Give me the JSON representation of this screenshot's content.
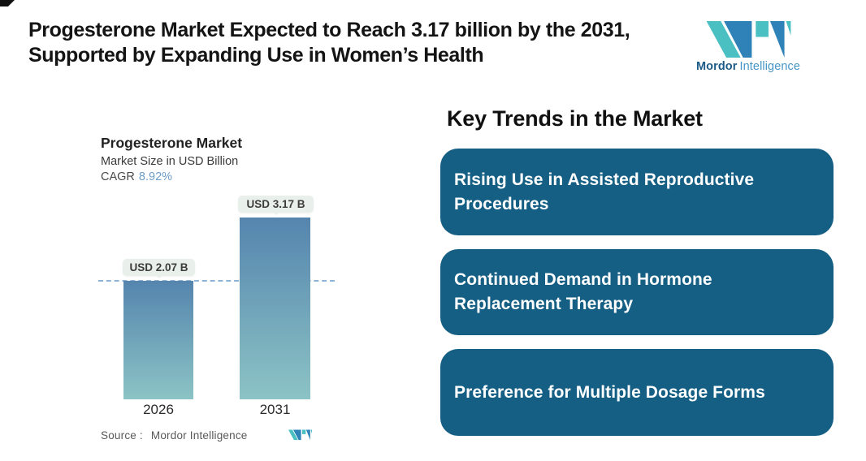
{
  "header": {
    "title_line1": "Progesterone Market Expected to Reach 3.17 billion by the 2031,",
    "title_line2": "Supported by Expanding Use in Women’s Health"
  },
  "brand": {
    "logo_bold": "Mordor",
    "logo_light": "Intelligence",
    "teal": "#4AC0C3",
    "blue": "#2E82B8"
  },
  "chart": {
    "title": "Progesterone Market",
    "subtitle": "Market Size in USD Billion",
    "cagr_label": "CAGR",
    "cagr_value": "8.92%",
    "bars": [
      {
        "year": "2026",
        "label": "USD 2.07 B"
      },
      {
        "year": "2031",
        "label": "USD 3.17 B"
      }
    ],
    "source_label": "Source :",
    "source_value": "Mordor Intelligence"
  },
  "chart_data": {
    "type": "bar",
    "title": "Progesterone Market",
    "subtitle": "Market Size in USD Billion",
    "xlabel": "",
    "ylabel": "Market Size in USD Billion",
    "unit": "USD Billion",
    "categories": [
      "2026",
      "2031"
    ],
    "values": [
      2.07,
      3.17
    ],
    "value_labels": [
      "USD 2.07 B",
      "USD 3.17 B"
    ],
    "cagr_percent": 8.92,
    "reference_line_value": 2.07,
    "grid": false,
    "legend": false,
    "bar_gradient_top": "#5585AE",
    "bar_gradient_bottom": "#8CC3C5",
    "reference_line_color": "#8FB3D4",
    "source": "Mordor Intelligence"
  },
  "trends": {
    "heading": "Key Trends in the Market",
    "card_bg": "#155F84",
    "items": [
      {
        "text": "Rising Use in Assisted Reproductive Procedures"
      },
      {
        "text": "Continued Demand in Hormone Replacement Therapy"
      },
      {
        "text": "Preference for Multiple Dosage Forms"
      }
    ]
  }
}
